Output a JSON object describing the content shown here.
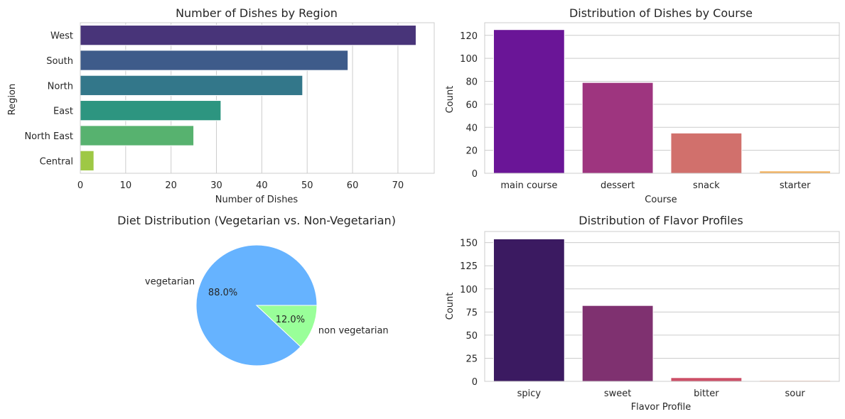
{
  "figure": {
    "background": "#ffffff",
    "grid_color": "#cccccc",
    "axis_edge_color": "#cccccc",
    "text_color": "#262626"
  },
  "chart_data": [
    {
      "id": "region",
      "type": "bar",
      "orientation": "horizontal",
      "title": "Number of Dishes by Region",
      "xlabel": "Number of Dishes",
      "ylabel": "Region",
      "categories": [
        "West",
        "South",
        "North",
        "East",
        "North East",
        "Central"
      ],
      "values": [
        74,
        59,
        49,
        31,
        25,
        3
      ],
      "colors": [
        "#483479",
        "#3e5b8a",
        "#33778a",
        "#2d9580",
        "#57b26f",
        "#9ec845"
      ],
      "xlim": [
        0,
        78
      ],
      "xticks": [
        0,
        10,
        20,
        30,
        40,
        50,
        60,
        70
      ],
      "grid": "x"
    },
    {
      "id": "course",
      "type": "bar",
      "title": "Distribution of Dishes by Course",
      "xlabel": "Course",
      "ylabel": "Count",
      "categories": [
        "main course",
        "dessert",
        "snack",
        "starter"
      ],
      "values": [
        125,
        79,
        35,
        2
      ],
      "colors": [
        "#6a1597",
        "#9e357f",
        "#d1706c",
        "#f2b25e"
      ],
      "ylim": [
        0,
        131
      ],
      "yticks": [
        0,
        20,
        40,
        60,
        80,
        100,
        120
      ],
      "grid": "y"
    },
    {
      "id": "diet",
      "type": "pie",
      "title": "Diet Distribution (Vegetarian vs. Non-Vegetarian)",
      "labels": [
        "vegetarian",
        "non vegetarian"
      ],
      "values": [
        88.0,
        12.0
      ],
      "pct_labels": [
        "88.0%",
        "12.0%"
      ],
      "colors": [
        "#66b3ff",
        "#99ff99"
      ]
    },
    {
      "id": "flavor",
      "type": "bar",
      "title": "Distribution of Flavor Profiles",
      "xlabel": "Flavor Profile",
      "ylabel": "Count",
      "categories": [
        "spicy",
        "sweet",
        "bitter",
        "sour"
      ],
      "values": [
        154,
        82,
        4,
        1
      ],
      "colors": [
        "#3b1a61",
        "#7f3170",
        "#cc4f67",
        "#f2a98c"
      ],
      "ylim": [
        0,
        162
      ],
      "yticks": [
        0,
        25,
        50,
        75,
        100,
        125,
        150
      ],
      "grid": "y"
    }
  ]
}
